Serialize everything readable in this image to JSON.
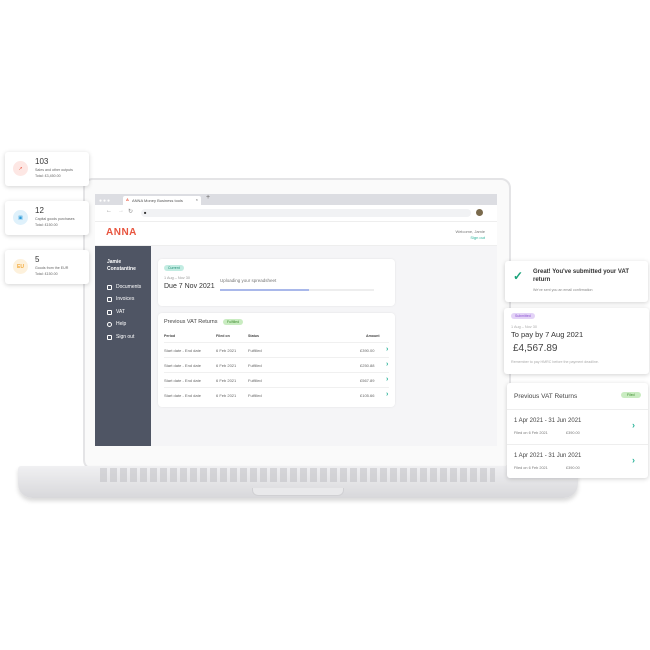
{
  "browser": {
    "tab_title": "ANNA Money Business tools",
    "new_tab": "+",
    "close": "×"
  },
  "header": {
    "logo": "ANNA",
    "welcome": "Welcome, Jamie",
    "sign_out": "Sign out"
  },
  "sidebar": {
    "user": "Jamie Constantine",
    "items": [
      {
        "label": "Documents"
      },
      {
        "label": "Invoices"
      },
      {
        "label": "VAT"
      },
      {
        "label": "Help"
      },
      {
        "label": "Sign out"
      }
    ]
  },
  "current": {
    "badge": "Current",
    "period": "1 Aug – Nov 30",
    "due": "Due 7 Nov 2021",
    "upload_label": "Uploading your spreadsheet",
    "progress_pct": 58
  },
  "previous": {
    "title": "Previous VAT Returns",
    "badge": "Fulfilled",
    "columns": [
      "Period",
      "Filed on",
      "Status",
      "Amount"
    ],
    "rows": [
      {
        "period": "Start date - End date",
        "filed": "6 Feb 2021",
        "status": "Fulfilled",
        "amount": "£390.00"
      },
      {
        "period": "Start date - End date",
        "filed": "6 Feb 2021",
        "status": "Fulfilled",
        "amount": "£250.88"
      },
      {
        "period": "Start date - End date",
        "filed": "6 Feb 2021",
        "status": "Fulfilled",
        "amount": "£567.89"
      },
      {
        "period": "Start date - End date",
        "filed": "6 Feb 2021",
        "status": "Fulfilled",
        "amount": "£105.66"
      }
    ]
  },
  "left_cards": [
    {
      "icon": "trend-up-icon",
      "count": "103",
      "desc": "Sales and other outputs",
      "total": "Total: £3,450.00",
      "color": "#e8553f"
    },
    {
      "icon": "document-icon",
      "count": "12",
      "desc": "Capital goods purchases",
      "total": "Total: £150.00",
      "color": "#2d9cdb"
    },
    {
      "icon": "EU",
      "count": "5",
      "desc": "Goods from the EUR",
      "total": "Total: £150.00",
      "color": "#f2a93b"
    }
  ],
  "success": {
    "title": "Great! You've submitted your VAT return",
    "subtitle": "We've sent you an email confirmation"
  },
  "submitted": {
    "badge": "Submitted",
    "period": "1 Aug – Nov 30",
    "due": "To pay by 7 Aug 2021",
    "amount": "£4,567.89",
    "note": "Remember to pay HMRC before the payment deadline."
  },
  "right_prev": {
    "title": "Previous VAT Returns",
    "badge": "Filed",
    "rows": [
      {
        "period": "1 Apr 2021 - 31 Jun 2021",
        "filed": "Filed on 6 Feb 2021",
        "amount": "£390.00"
      },
      {
        "period": "1 Apr 2021 - 31 Jun 2021",
        "filed": "Filed on 6 Feb 2021",
        "amount": "£390.00"
      }
    ]
  },
  "colors": {
    "accent": "#2bb39a",
    "brand": "#e8553f",
    "sidebar": "#4f5564",
    "progress": "#a9b8ea"
  }
}
